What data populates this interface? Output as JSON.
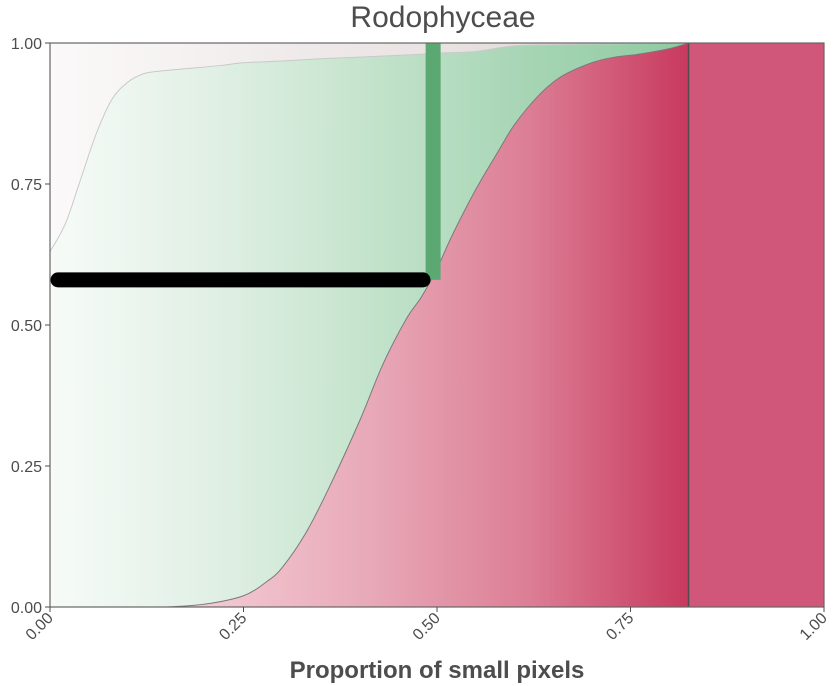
{
  "chart_data": {
    "type": "area",
    "title": "Rodophyceae",
    "xlabel": "Proportion of small pixels",
    "ylabel": "",
    "xlim": [
      0,
      1
    ],
    "ylim": [
      0,
      1
    ],
    "x_ticks": [
      "0.00",
      "0.25",
      "0.50",
      "0.75",
      "1.00"
    ],
    "y_ticks": [
      "0.00",
      "0.25",
      "0.50",
      "0.75",
      "1.00"
    ],
    "grid": false,
    "series": [
      {
        "fill": "lower",
        "x": [
          0.0,
          0.05,
          0.1,
          0.15,
          0.2,
          0.25,
          0.28,
          0.3,
          0.33,
          0.36,
          0.4,
          0.43,
          0.46,
          0.48,
          0.5,
          0.52,
          0.55,
          0.58,
          0.6,
          0.63,
          0.66,
          0.7,
          0.73,
          0.76,
          0.8,
          0.825
        ],
        "values": [
          0.0,
          0.0,
          0.0,
          0.0,
          0.005,
          0.02,
          0.045,
          0.07,
          0.13,
          0.21,
          0.33,
          0.43,
          0.51,
          0.55,
          0.6,
          0.66,
          0.74,
          0.81,
          0.855,
          0.905,
          0.94,
          0.965,
          0.975,
          0.98,
          0.99,
          1.0
        ]
      },
      {
        "fill": "middle",
        "x": [
          0.0,
          0.02,
          0.04,
          0.06,
          0.08,
          0.1,
          0.12,
          0.14,
          0.18,
          0.22,
          0.25,
          0.3,
          0.35,
          0.4,
          0.45,
          0.48,
          0.5,
          0.55,
          0.6,
          0.65,
          0.7,
          0.75,
          0.8,
          0.825
        ],
        "values": [
          0.63,
          0.68,
          0.76,
          0.84,
          0.9,
          0.93,
          0.945,
          0.95,
          0.955,
          0.96,
          0.965,
          0.968,
          0.972,
          0.975,
          0.978,
          0.98,
          0.982,
          0.985,
          0.995,
          0.997,
          0.998,
          0.999,
          1.0,
          1.0
        ]
      }
    ],
    "markers": {
      "horizontal_segment": {
        "x": [
          0.0,
          0.5
        ],
        "y": 0.58
      },
      "vertical_segment": {
        "x": 0.495,
        "y": [
          0.58,
          1.0
        ]
      },
      "vline": {
        "x": 0.825
      }
    },
    "colors": {
      "lower_fill": "#c8395e",
      "middle_fill": "#a6d5b4",
      "upper_fill": "#ddd5d3",
      "vertical_segment": "#5ca872",
      "horizontal_segment": "#000000",
      "axis": "#4d4d4d"
    }
  }
}
